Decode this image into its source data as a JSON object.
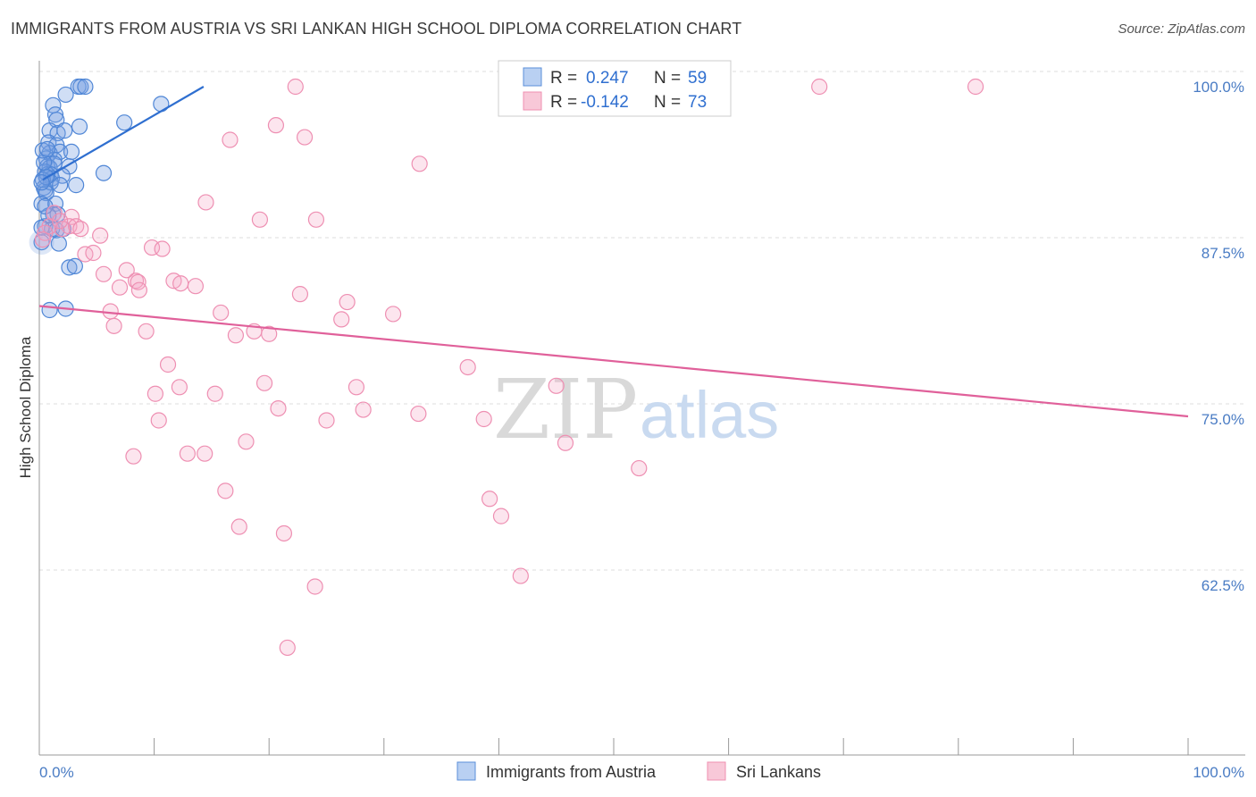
{
  "title": "IMMIGRANTS FROM AUSTRIA VS SRI LANKAN HIGH SCHOOL DIPLOMA CORRELATION CHART",
  "source": "Source: ZipAtlas.com",
  "colors": {
    "blue": "#5b8fd9",
    "blue_line": "#2f6fd0",
    "pink": "#ef8fb0",
    "pink_line": "#e0609a",
    "tick": "#4a7cc4"
  },
  "chart_data": {
    "type": "scatter",
    "xlabel": "",
    "ylabel": "High School Diploma",
    "xlim": [
      0,
      100
    ],
    "ylim": [
      51,
      101
    ],
    "x_tick_labels": [
      "0.0%",
      "100.0%"
    ],
    "y_ticks": [
      {
        "value": 100,
        "label": "100.0%"
      },
      {
        "value": 87.5,
        "label": "87.5%"
      },
      {
        "value": 75,
        "label": "75.0%"
      },
      {
        "value": 62.5,
        "label": "62.5%"
      }
    ],
    "legend": [
      {
        "series": "Immigrants from Austria",
        "r_label": "R =",
        "r": "0.247",
        "n_label": "N =",
        "n": "59"
      },
      {
        "series": "Sri Lankans",
        "r_label": "R =",
        "r": "-0.142",
        "n_label": "N =",
        "n": "73"
      }
    ],
    "watermark": {
      "zip": "ZIP",
      "atlas": "atlas"
    },
    "series": [
      {
        "name": "Immigrants from Austria",
        "trend": {
          "x0": 0.3,
          "y0": 93.0,
          "x1": 14.3,
          "y1": 100.0
        },
        "points": [
          [
            3.4,
            100
          ],
          [
            3.6,
            100
          ],
          [
            4.0,
            100
          ],
          [
            2.3,
            99.4
          ],
          [
            1.2,
            98.6
          ],
          [
            1.4,
            97.9
          ],
          [
            1.5,
            97.5
          ],
          [
            7.4,
            97.3
          ],
          [
            10.6,
            98.7
          ],
          [
            0.9,
            96.7
          ],
          [
            1.6,
            96.5
          ],
          [
            3.5,
            97.0
          ],
          [
            2.2,
            96.7
          ],
          [
            0.8,
            95.8
          ],
          [
            1.5,
            95.6
          ],
          [
            0.9,
            95.0
          ],
          [
            1.8,
            95.1
          ],
          [
            2.8,
            95.1
          ],
          [
            0.6,
            94.6
          ],
          [
            1.3,
            94.5
          ],
          [
            0.7,
            94.0
          ],
          [
            0.9,
            93.9
          ],
          [
            1.3,
            94.2
          ],
          [
            2.6,
            94.0
          ],
          [
            0.5,
            93.6
          ],
          [
            0.7,
            93.4
          ],
          [
            1.0,
            93.4
          ],
          [
            1.1,
            93.1
          ],
          [
            2.0,
            93.3
          ],
          [
            5.6,
            93.5
          ],
          [
            0.4,
            92.4
          ],
          [
            0.5,
            92.2
          ],
          [
            1.0,
            92.8
          ],
          [
            1.8,
            92.6
          ],
          [
            3.2,
            92.6
          ],
          [
            0.6,
            92.0
          ],
          [
            1.4,
            91.2
          ],
          [
            1.2,
            90.4
          ],
          [
            1.6,
            90.4
          ],
          [
            0.5,
            89.5
          ],
          [
            1.1,
            89.3
          ],
          [
            1.5,
            89.2
          ],
          [
            2.1,
            89.3
          ],
          [
            1.7,
            88.2
          ],
          [
            2.6,
            86.4
          ],
          [
            3.1,
            86.5
          ],
          [
            0.9,
            83.2
          ],
          [
            2.3,
            83.3
          ],
          [
            0.2,
            88.3
          ],
          [
            0.3,
            93.0
          ],
          [
            0.6,
            93.2
          ],
          [
            0.4,
            94.3
          ],
          [
            0.3,
            95.2
          ],
          [
            0.2,
            92.8
          ],
          [
            0.2,
            91.2
          ],
          [
            0.8,
            90.3
          ],
          [
            0.2,
            89.4
          ],
          [
            0.5,
            91.0
          ],
          [
            0.7,
            95.3
          ]
        ]
      },
      {
        "name": "Sri Lankans",
        "trend": {
          "x0": 0,
          "y0": 83.5,
          "x1": 100,
          "y1": 75.2
        },
        "points": [
          [
            22.3,
            100
          ],
          [
            67.9,
            100
          ],
          [
            81.5,
            100
          ],
          [
            20.6,
            97.1
          ],
          [
            23.1,
            96.2
          ],
          [
            16.6,
            96.0
          ],
          [
            33.1,
            94.2
          ],
          [
            14.5,
            91.3
          ],
          [
            19.2,
            90.0
          ],
          [
            24.1,
            90.0
          ],
          [
            1.3,
            90.5
          ],
          [
            2.8,
            90.2
          ],
          [
            0.9,
            89.5
          ],
          [
            2.0,
            89.3
          ],
          [
            2.6,
            89.5
          ],
          [
            3.2,
            89.5
          ],
          [
            3.6,
            89.3
          ],
          [
            5.3,
            88.8
          ],
          [
            9.8,
            87.9
          ],
          [
            10.7,
            87.8
          ],
          [
            4.0,
            87.4
          ],
          [
            4.7,
            87.5
          ],
          [
            7.6,
            86.2
          ],
          [
            5.6,
            85.9
          ],
          [
            8.4,
            85.4
          ],
          [
            11.7,
            85.4
          ],
          [
            12.3,
            85.2
          ],
          [
            8.6,
            85.3
          ],
          [
            7.0,
            84.9
          ],
          [
            8.7,
            84.7
          ],
          [
            13.6,
            85.0
          ],
          [
            22.7,
            84.4
          ],
          [
            26.8,
            83.8
          ],
          [
            6.2,
            83.1
          ],
          [
            15.8,
            83.0
          ],
          [
            30.8,
            82.9
          ],
          [
            26.3,
            82.5
          ],
          [
            6.5,
            82.0
          ],
          [
            9.3,
            81.6
          ],
          [
            18.7,
            81.6
          ],
          [
            17.1,
            81.3
          ],
          [
            20.0,
            81.4
          ],
          [
            11.2,
            79.1
          ],
          [
            37.3,
            78.9
          ],
          [
            19.6,
            77.7
          ],
          [
            12.2,
            77.4
          ],
          [
            27.6,
            77.4
          ],
          [
            45.0,
            77.5
          ],
          [
            10.1,
            76.9
          ],
          [
            15.3,
            76.9
          ],
          [
            20.8,
            75.8
          ],
          [
            28.2,
            75.7
          ],
          [
            33.0,
            75.4
          ],
          [
            10.4,
            74.9
          ],
          [
            25.0,
            74.9
          ],
          [
            38.7,
            75.0
          ],
          [
            18.0,
            73.3
          ],
          [
            45.8,
            73.2
          ],
          [
            8.2,
            72.2
          ],
          [
            12.9,
            72.4
          ],
          [
            14.4,
            72.4
          ],
          [
            52.2,
            71.3
          ],
          [
            16.2,
            69.6
          ],
          [
            39.2,
            69.0
          ],
          [
            40.2,
            67.7
          ],
          [
            17.4,
            66.9
          ],
          [
            21.3,
            66.4
          ],
          [
            41.9,
            63.2
          ],
          [
            24.0,
            62.4
          ],
          [
            21.6,
            57.8
          ],
          [
            0.5,
            89.0
          ],
          [
            1.8,
            89.9
          ],
          [
            0.3,
            88.5
          ]
        ]
      }
    ]
  }
}
